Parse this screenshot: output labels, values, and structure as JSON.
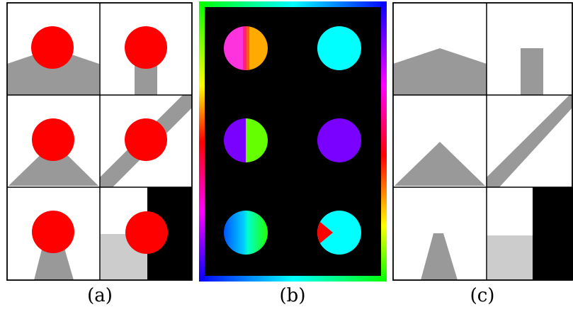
{
  "labels": {
    "a": "(a)",
    "b": "(b)",
    "c": "(c)"
  },
  "colors": {
    "disk": "#ff0000",
    "obstacle": "#999999",
    "light_obstacle": "#cccccc",
    "background": "#ffffff",
    "border": "#000000",
    "field_background": "#000000"
  },
  "panel_a_cells": [
    {
      "name": "cell-slope-flat-top",
      "shape": "trapezoid-mound"
    },
    {
      "name": "cell-pillar",
      "shape": "pillar"
    },
    {
      "name": "cell-triangle",
      "shape": "triangle"
    },
    {
      "name": "cell-diagonal-bar",
      "shape": "diagonal-bar"
    },
    {
      "name": "cell-narrow-cone",
      "shape": "narrow-cone"
    },
    {
      "name": "cell-box-and-wall",
      "shape": "box-with-black-region"
    }
  ],
  "panel_b_disks": [
    {
      "name": "disk-split-magenta-orange",
      "fill": "split",
      "colors": [
        "#ff33dd",
        "#ff9900"
      ]
    },
    {
      "name": "disk-cyan",
      "fill": "solid",
      "colors": [
        "#00ffff"
      ]
    },
    {
      "name": "disk-split-purple-green",
      "fill": "split",
      "colors": [
        "#7a00ff",
        "#66ff00"
      ]
    },
    {
      "name": "disk-purple",
      "fill": "solid",
      "colors": [
        "#7a00ff"
      ]
    },
    {
      "name": "disk-gradient-blue-green",
      "fill": "gradient",
      "colors": [
        "#0066ff",
        "#00ffff",
        "#33ff00"
      ]
    },
    {
      "name": "disk-cyan-with-red-wedge",
      "fill": "wedge",
      "colors": [
        "#00ffff",
        "#ff0000"
      ]
    }
  ]
}
